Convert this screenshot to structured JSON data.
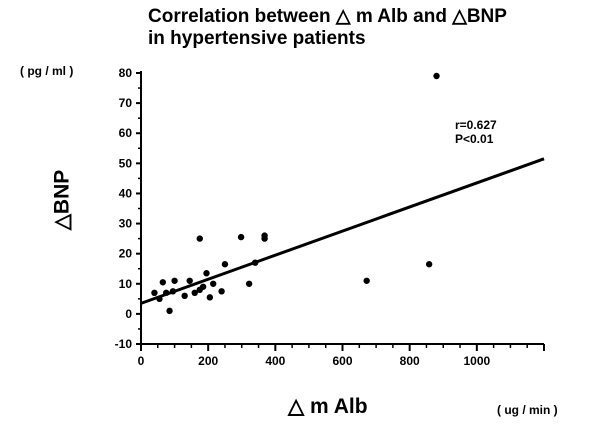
{
  "chart_data": {
    "type": "scatter",
    "title_line1": "Correlation between △ m Alb and △BNP",
    "title_line2": "in hypertensive patients",
    "xlabel": "△ m Alb",
    "ylabel": "△BNP",
    "x_unit": "( ug / min )",
    "y_unit": "( pg / ml )",
    "xlim": [
      0,
      1200
    ],
    "ylim": [
      -10,
      80
    ],
    "x_ticks": [
      "0",
      "200",
      "400",
      "600",
      "800",
      "1000"
    ],
    "x_tick_values": [
      0,
      200,
      400,
      600,
      800,
      1000
    ],
    "y_ticks": [
      "-10",
      "0",
      "10",
      "20",
      "30",
      "40",
      "50",
      "60",
      "70",
      "80"
    ],
    "y_tick_values": [
      -10,
      0,
      10,
      20,
      30,
      40,
      50,
      60,
      70,
      80
    ],
    "grid": false,
    "annotations": [
      "r=0.627",
      "P<0.01"
    ],
    "regression": {
      "x": [
        0,
        1200
      ],
      "y": [
        3.5,
        51.5
      ]
    },
    "points": [
      {
        "x": 880,
        "y": 79
      },
      {
        "x": 175,
        "y": 25
      },
      {
        "x": 298,
        "y": 25.5
      },
      {
        "x": 368,
        "y": 26
      },
      {
        "x": 368,
        "y": 25
      },
      {
        "x": 340,
        "y": 17
      },
      {
        "x": 250,
        "y": 16.5
      },
      {
        "x": 858,
        "y": 16.5
      },
      {
        "x": 672,
        "y": 11
      },
      {
        "x": 65,
        "y": 10.5
      },
      {
        "x": 100,
        "y": 11
      },
      {
        "x": 145,
        "y": 11
      },
      {
        "x": 195,
        "y": 13.5
      },
      {
        "x": 322,
        "y": 10
      },
      {
        "x": 215,
        "y": 10
      },
      {
        "x": 185,
        "y": 9
      },
      {
        "x": 40,
        "y": 7
      },
      {
        "x": 75,
        "y": 7
      },
      {
        "x": 95,
        "y": 7.5
      },
      {
        "x": 160,
        "y": 7
      },
      {
        "x": 175,
        "y": 8
      },
      {
        "x": 240,
        "y": 7.5
      },
      {
        "x": 55,
        "y": 5
      },
      {
        "x": 130,
        "y": 6
      },
      {
        "x": 205,
        "y": 5.5
      },
      {
        "x": 85,
        "y": 1
      }
    ]
  }
}
